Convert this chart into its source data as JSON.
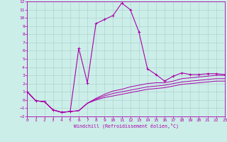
{
  "xlabel": "Windchill (Refroidissement éolien,°C)",
  "background_color": "#cceee8",
  "grid_color": "#aacccc",
  "line_color": "#aa00aa",
  "xlim": [
    0,
    23
  ],
  "ylim": [
    -2,
    12
  ],
  "yticks": [
    -2,
    -1,
    0,
    1,
    2,
    3,
    4,
    5,
    6,
    7,
    8,
    9,
    10,
    11,
    12
  ],
  "xticks": [
    0,
    1,
    2,
    3,
    4,
    5,
    6,
    7,
    8,
    9,
    10,
    11,
    12,
    13,
    14,
    15,
    16,
    17,
    18,
    19,
    20,
    21,
    22,
    23
  ],
  "curve1_x": [
    0,
    1,
    2,
    3,
    4,
    5,
    6,
    7,
    8,
    9,
    10,
    11,
    12,
    13,
    14,
    15,
    16,
    17,
    18,
    19,
    20,
    21,
    22,
    23
  ],
  "curve1_y": [
    1.0,
    -0.1,
    -0.2,
    -1.2,
    -1.5,
    -1.4,
    6.3,
    2.1,
    9.3,
    9.8,
    10.3,
    11.8,
    11.0,
    8.3,
    3.8,
    3.1,
    2.3,
    2.9,
    3.3,
    3.1,
    3.1,
    3.2,
    3.2,
    3.1
  ],
  "curve2_x": [
    0,
    1,
    2,
    3,
    4,
    5,
    6,
    7,
    8,
    9,
    10,
    11,
    12,
    13,
    14,
    15,
    16,
    17,
    18,
    19,
    20,
    21,
    22,
    23
  ],
  "curve2_y": [
    1.0,
    -0.1,
    -0.2,
    -1.2,
    -1.5,
    -1.4,
    -1.3,
    -0.4,
    0.2,
    0.7,
    1.1,
    1.3,
    1.6,
    1.8,
    2.0,
    2.1,
    2.1,
    2.3,
    2.6,
    2.7,
    2.8,
    2.9,
    3.0,
    3.0
  ],
  "curve3_x": [
    0,
    1,
    2,
    3,
    4,
    5,
    6,
    7,
    8,
    9,
    10,
    11,
    12,
    13,
    14,
    15,
    16,
    17,
    18,
    19,
    20,
    21,
    22,
    23
  ],
  "curve3_y": [
    1.0,
    -0.1,
    -0.2,
    -1.2,
    -1.5,
    -1.4,
    -1.3,
    -0.4,
    0.1,
    0.5,
    0.8,
    1.0,
    1.2,
    1.4,
    1.6,
    1.7,
    1.8,
    2.0,
    2.2,
    2.3,
    2.4,
    2.5,
    2.6,
    2.6
  ],
  "curve4_x": [
    0,
    1,
    2,
    3,
    4,
    5,
    6,
    7,
    8,
    9,
    10,
    11,
    12,
    13,
    14,
    15,
    16,
    17,
    18,
    19,
    20,
    21,
    22,
    23
  ],
  "curve4_y": [
    1.0,
    -0.1,
    -0.2,
    -1.2,
    -1.5,
    -1.4,
    -1.3,
    -0.4,
    0.0,
    0.3,
    0.5,
    0.7,
    0.9,
    1.1,
    1.3,
    1.4,
    1.5,
    1.7,
    1.9,
    2.0,
    2.1,
    2.2,
    2.3,
    2.3
  ]
}
